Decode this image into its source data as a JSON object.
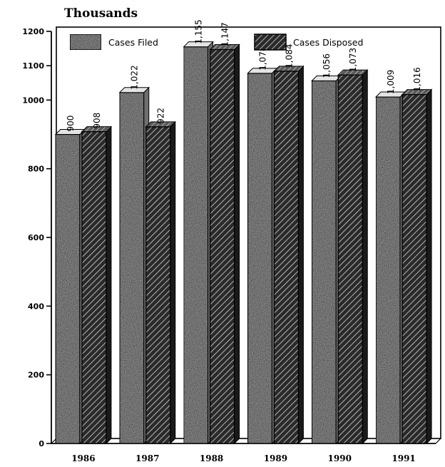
{
  "chart_data": {
    "type": "bar",
    "y_unit_label": "Thousands",
    "categories": [
      "1986",
      "1987",
      "1988",
      "1989",
      "1990",
      "1991"
    ],
    "series": [
      {
        "name": "Cases Filed",
        "values": [
          900,
          1022,
          1155,
          1078,
          1056,
          1009
        ],
        "value_labels": [
          "900",
          "1,022",
          "1,155",
          "1,078",
          "1,056",
          "1,009"
        ]
      },
      {
        "name": "Cases Disposed",
        "values": [
          908,
          922,
          1147,
          1084,
          1073,
          1016
        ],
        "value_labels": [
          "908",
          "922",
          "1,147",
          "1,084",
          "1,073",
          "1,016"
        ]
      }
    ],
    "y_ticks": [
      "0",
      "200",
      "400",
      "600",
      "800",
      "1000",
      "1100",
      "1200"
    ],
    "y_tick_values": [
      0,
      200,
      400,
      600,
      800,
      1000,
      1100,
      1200
    ],
    "ylim": [
      0,
      1200
    ],
    "legend": "top",
    "grid": false,
    "colors": {
      "filed": "#8c8c8c",
      "disposed": "#2e2e2e",
      "axis": "#000000"
    }
  }
}
